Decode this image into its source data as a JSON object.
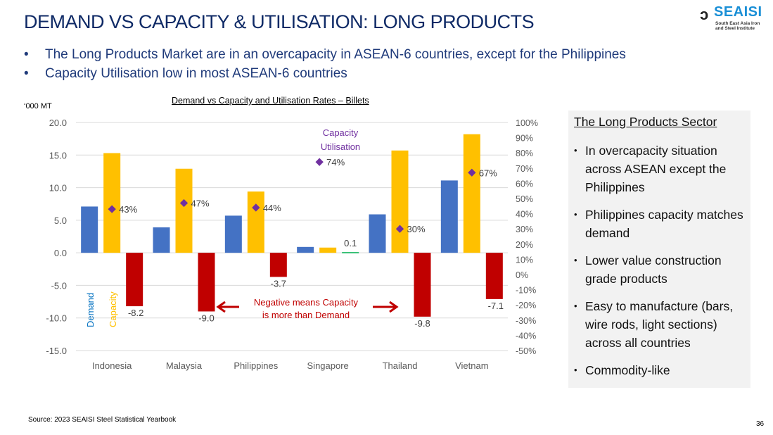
{
  "slide": {
    "title": "DEMAND VS CAPACITY & UTILISATION: LONG PRODUCTS",
    "bullets": [
      "The Long Products Market are in an overcapacity in ASEAN-6 countries, except for the Philippines",
      "Capacity Utilisation low in most ASEAN-6 countries"
    ],
    "logo": {
      "name": "SEAISI",
      "subtitle_line1": "South East Asia Iron",
      "subtitle_line2": "and Steel Institute"
    },
    "source": "Source: 2023 SEAISI Steel Statistical Yearbook",
    "page_number": "36"
  },
  "sidebar": {
    "heading": "The Long Products Sector",
    "items": [
      "In overcapacity situation across ASEAN except the Philippines",
      "Philippines capacity matches demand",
      "Lower value construction grade products",
      "Easy to manufacture (bars, wire rods, light sections) across all countries",
      "Commodity-like"
    ]
  },
  "chart_data": {
    "type": "bar",
    "title": "Demand vs Capacity and Utilisation Rates – Billets",
    "ylabel": "‘000 MT",
    "y2label": "",
    "categories": [
      "Indonesia",
      "Malaysia",
      "Philippines",
      "Singapore",
      "Thailand",
      "Vietnam"
    ],
    "ylim": [
      -15,
      20
    ],
    "yticks": [
      "20.0",
      "15.0",
      "10.0",
      "5.0",
      "0.0",
      "-5.0",
      "-10.0",
      "-15.0"
    ],
    "ytick_values": [
      20,
      15,
      10,
      5,
      0,
      -5,
      -10,
      -15
    ],
    "y2lim": [
      -50,
      100
    ],
    "y2ticks": [
      "100%",
      "90%",
      "80%",
      "70%",
      "60%",
      "50%",
      "40%",
      "30%",
      "20%",
      "10%",
      "0%",
      "-10%",
      "-20%",
      "-30%",
      "-40%",
      "-50%"
    ],
    "y2tick_values": [
      100,
      90,
      80,
      70,
      60,
      50,
      40,
      30,
      20,
      10,
      0,
      -10,
      -20,
      -30,
      -40,
      -50
    ],
    "grid": true,
    "series": [
      {
        "name": "Demand",
        "color": "#4472c4",
        "values": [
          7.1,
          3.9,
          5.7,
          0.9,
          5.9,
          11.1
        ]
      },
      {
        "name": "Capacity",
        "color": "#ffc000",
        "values": [
          15.3,
          12.9,
          9.4,
          0.8,
          15.7,
          18.2
        ]
      },
      {
        "name": "Difference",
        "color": "#c00000",
        "positive_color": "#00b050",
        "values": [
          -8.2,
          -9.0,
          -3.7,
          0.1,
          -9.8,
          -7.1
        ],
        "labels": [
          "-8.2",
          "-9.0",
          "-3.7",
          "0.1",
          "-9.8",
          "-7.1"
        ]
      },
      {
        "name": "Capacity Utilisation",
        "type": "scatter",
        "axis": "secondary",
        "color": "#7030a0",
        "values": [
          43,
          47,
          44,
          74,
          30,
          67
        ],
        "labels": [
          "43%",
          "47%",
          "44%",
          "74%",
          "30%",
          "67%"
        ]
      }
    ],
    "legend": {
      "demand_label": "Demand",
      "capacity_label": "Capacity",
      "utilisation_label_line1": "Capacity",
      "utilisation_label_line2": "Utilisation",
      "placement": "inline"
    },
    "annotations": {
      "note_line1": "Negative means Capacity",
      "note_line2": "is more than Demand",
      "note_color": "#c00000"
    }
  }
}
